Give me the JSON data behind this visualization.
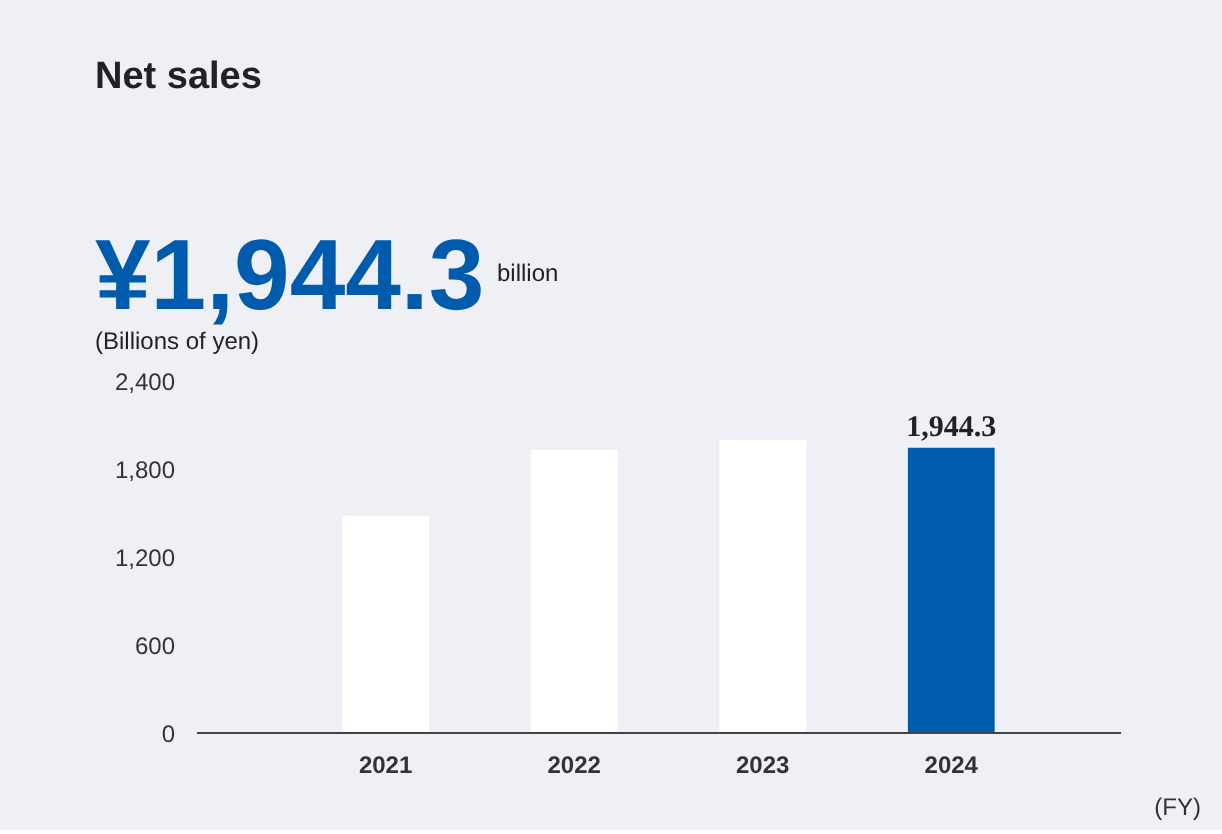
{
  "chart_data": {
    "type": "bar",
    "title": "Net sales",
    "annotations": [
      "¥1,944.3",
      "billion"
    ],
    "ylabel": "(Billions of yen)",
    "xlabel": "(FY)",
    "categories": [
      "2021",
      "2022",
      "2023",
      "2024"
    ],
    "values": [
      1480,
      1930,
      2000,
      1944.3
    ],
    "colors": [
      "#ffffff",
      "#ffffff",
      "#ffffff",
      "#005bac"
    ],
    "value_labels": [
      null,
      null,
      null,
      "1,944.3"
    ],
    "ylim": [
      0,
      2400
    ],
    "yticks": [
      0,
      600,
      {
        "value": 1200,
        "label": "1,200"
      },
      {
        "value": 1800,
        "label": "1,800"
      },
      {
        "value": 2400,
        "label": "2,400"
      }
    ],
    "grid": false
  }
}
